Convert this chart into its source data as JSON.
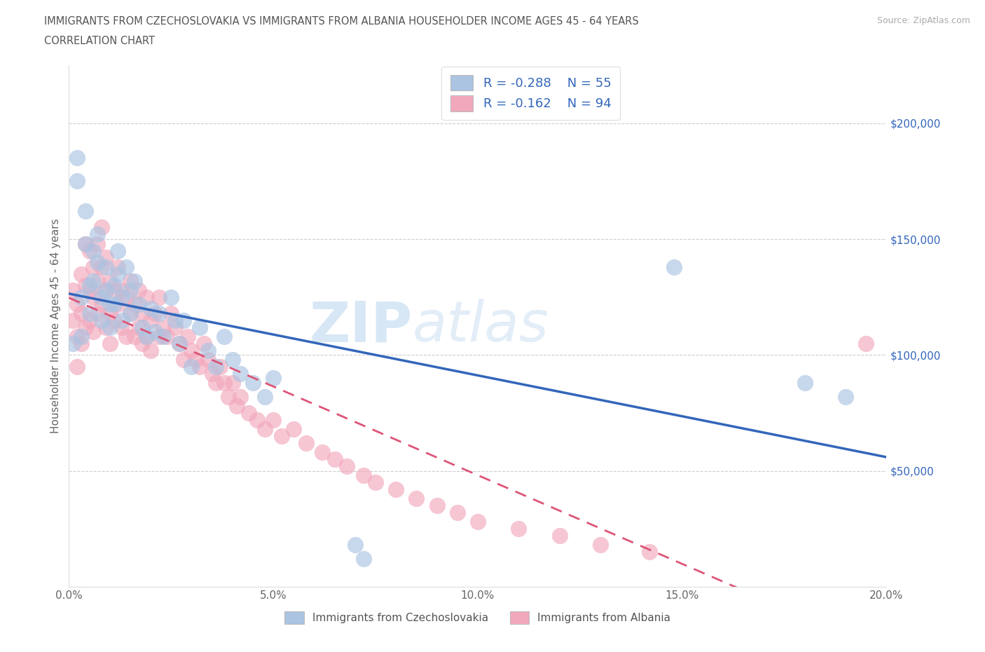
{
  "title_line1": "IMMIGRANTS FROM CZECHOSLOVAKIA VS IMMIGRANTS FROM ALBANIA HOUSEHOLDER INCOME AGES 45 - 64 YEARS",
  "title_line2": "CORRELATION CHART",
  "source": "Source: ZipAtlas.com",
  "ylabel": "Householder Income Ages 45 - 64 years",
  "xlim": [
    0.0,
    0.2
  ],
  "ylim": [
    0,
    220000
  ],
  "xtick_labels": [
    "0.0%",
    "5.0%",
    "10.0%",
    "15.0%",
    "20.0%"
  ],
  "xtick_values": [
    0.0,
    0.05,
    0.1,
    0.15,
    0.2
  ],
  "ytick_labels": [
    "$50,000",
    "$100,000",
    "$150,000",
    "$200,000"
  ],
  "ytick_values": [
    50000,
    100000,
    150000,
    200000
  ],
  "legend_label1": "Immigrants from Czechoslovakia",
  "legend_label2": "Immigrants from Albania",
  "stat_R1": "-0.288",
  "stat_N1": "55",
  "stat_R2": "-0.162",
  "stat_N2": "94",
  "color_czech": "#aac4e2",
  "color_albania": "#f2a8bc",
  "color_czech_line": "#3366bb",
  "color_albania_line": "#dd5577",
  "watermark": "ZIPatlas",
  "czech_x": [
    0.001,
    0.002,
    0.002,
    0.003,
    0.003,
    0.004,
    0.004,
    0.005,
    0.005,
    0.006,
    0.006,
    0.007,
    0.007,
    0.008,
    0.008,
    0.009,
    0.009,
    0.01,
    0.01,
    0.011,
    0.011,
    0.012,
    0.012,
    0.013,
    0.013,
    0.014,
    0.015,
    0.015,
    0.016,
    0.017,
    0.018,
    0.019,
    0.02,
    0.021,
    0.022,
    0.023,
    0.025,
    0.026,
    0.027,
    0.028,
    0.03,
    0.032,
    0.034,
    0.036,
    0.038,
    0.04,
    0.042,
    0.045,
    0.048,
    0.05,
    0.07,
    0.072,
    0.148,
    0.18,
    0.19
  ],
  "czech_y": [
    105000,
    185000,
    175000,
    125000,
    108000,
    162000,
    148000,
    130000,
    118000,
    145000,
    132000,
    152000,
    140000,
    125000,
    115000,
    138000,
    128000,
    122000,
    112000,
    130000,
    122000,
    145000,
    135000,
    125000,
    115000,
    138000,
    128000,
    118000,
    132000,
    122000,
    112000,
    108000,
    120000,
    110000,
    118000,
    108000,
    125000,
    115000,
    105000,
    115000,
    95000,
    112000,
    102000,
    95000,
    108000,
    98000,
    92000,
    88000,
    82000,
    90000,
    18000,
    12000,
    138000,
    88000,
    82000
  ],
  "albania_x": [
    0.001,
    0.001,
    0.002,
    0.002,
    0.002,
    0.003,
    0.003,
    0.003,
    0.004,
    0.004,
    0.004,
    0.005,
    0.005,
    0.005,
    0.006,
    0.006,
    0.006,
    0.007,
    0.007,
    0.007,
    0.008,
    0.008,
    0.008,
    0.009,
    0.009,
    0.009,
    0.01,
    0.01,
    0.01,
    0.011,
    0.011,
    0.012,
    0.012,
    0.013,
    0.013,
    0.014,
    0.014,
    0.015,
    0.015,
    0.016,
    0.016,
    0.017,
    0.017,
    0.018,
    0.018,
    0.019,
    0.019,
    0.02,
    0.02,
    0.021,
    0.022,
    0.022,
    0.023,
    0.024,
    0.025,
    0.026,
    0.027,
    0.028,
    0.029,
    0.03,
    0.031,
    0.032,
    0.033,
    0.034,
    0.035,
    0.036,
    0.037,
    0.038,
    0.039,
    0.04,
    0.041,
    0.042,
    0.044,
    0.046,
    0.048,
    0.05,
    0.052,
    0.055,
    0.058,
    0.062,
    0.065,
    0.068,
    0.072,
    0.075,
    0.08,
    0.085,
    0.09,
    0.095,
    0.1,
    0.11,
    0.12,
    0.13,
    0.142,
    0.195
  ],
  "albania_y": [
    115000,
    128000,
    108000,
    122000,
    95000,
    135000,
    118000,
    105000,
    148000,
    130000,
    112000,
    145000,
    128000,
    115000,
    138000,
    125000,
    110000,
    148000,
    132000,
    118000,
    155000,
    138000,
    122000,
    142000,
    128000,
    112000,
    132000,
    118000,
    105000,
    128000,
    115000,
    138000,
    122000,
    128000,
    112000,
    125000,
    108000,
    132000,
    118000,
    122000,
    108000,
    128000,
    112000,
    118000,
    105000,
    125000,
    108000,
    115000,
    102000,
    118000,
    108000,
    125000,
    112000,
    108000,
    118000,
    112000,
    105000,
    98000,
    108000,
    102000,
    98000,
    95000,
    105000,
    98000,
    92000,
    88000,
    95000,
    88000,
    82000,
    88000,
    78000,
    82000,
    75000,
    72000,
    68000,
    72000,
    65000,
    68000,
    62000,
    58000,
    55000,
    52000,
    48000,
    45000,
    42000,
    38000,
    35000,
    32000,
    28000,
    25000,
    22000,
    18000,
    15000,
    105000
  ]
}
